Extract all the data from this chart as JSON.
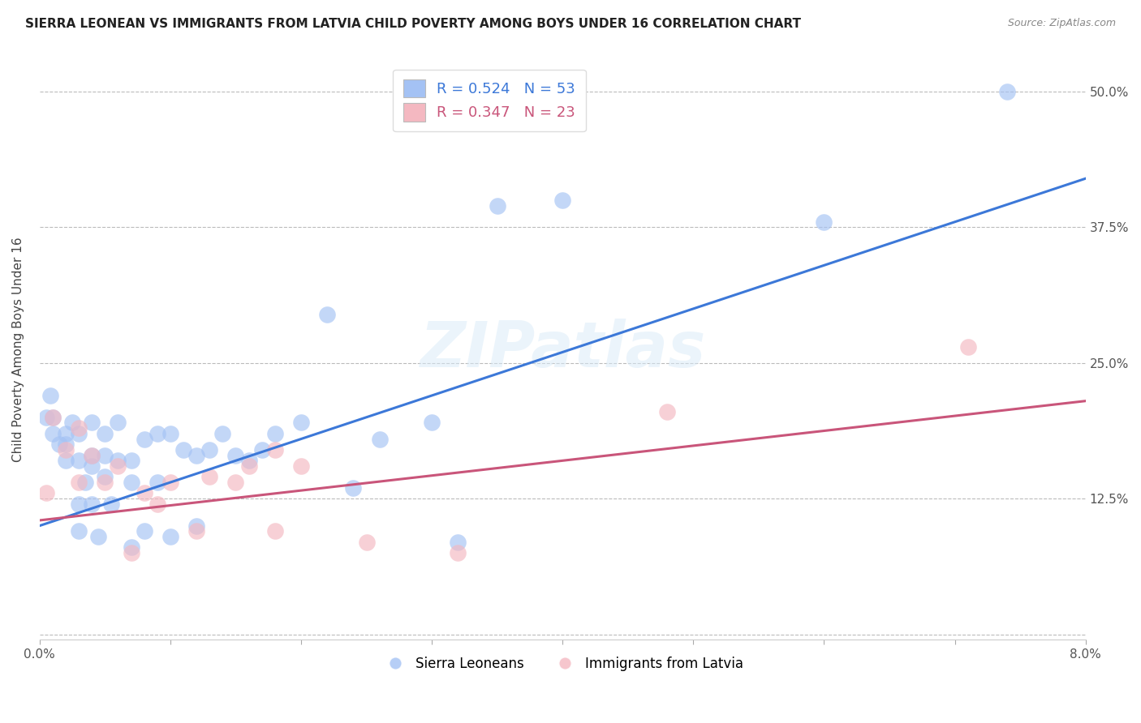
{
  "title": "SIERRA LEONEAN VS IMMIGRANTS FROM LATVIA CHILD POVERTY AMONG BOYS UNDER 16 CORRELATION CHART",
  "source": "Source: ZipAtlas.com",
  "ylabel": "Child Poverty Among Boys Under 16",
  "xlim": [
    0.0,
    0.08
  ],
  "ylim": [
    -0.005,
    0.53
  ],
  "xticks": [
    0.0,
    0.01,
    0.02,
    0.03,
    0.04,
    0.05,
    0.06,
    0.07,
    0.08
  ],
  "xticklabels": [
    "0.0%",
    "",
    "",
    "",
    "",
    "",
    "",
    "",
    "8.0%"
  ],
  "yticks": [
    0.0,
    0.125,
    0.25,
    0.375,
    0.5
  ],
  "yticklabels": [
    "",
    "12.5%",
    "25.0%",
    "37.5%",
    "50.0%"
  ],
  "legend_r1": "R = 0.524   N = 53",
  "legend_r2": "R = 0.347   N = 23",
  "blue_color": "#a4c2f4",
  "pink_color": "#f4b8c1",
  "line_blue": "#3c78d8",
  "line_pink": "#c9557a",
  "watermark": "ZIPatlas",
  "blue_scatter_x": [
    0.0005,
    0.0008,
    0.001,
    0.001,
    0.0015,
    0.002,
    0.002,
    0.002,
    0.0025,
    0.003,
    0.003,
    0.003,
    0.003,
    0.0035,
    0.004,
    0.004,
    0.004,
    0.004,
    0.0045,
    0.005,
    0.005,
    0.005,
    0.0055,
    0.006,
    0.006,
    0.007,
    0.007,
    0.007,
    0.008,
    0.008,
    0.009,
    0.009,
    0.01,
    0.01,
    0.011,
    0.012,
    0.012,
    0.013,
    0.014,
    0.015,
    0.016,
    0.017,
    0.018,
    0.02,
    0.022,
    0.024,
    0.026,
    0.03,
    0.032,
    0.035,
    0.04,
    0.06,
    0.074
  ],
  "blue_scatter_y": [
    0.2,
    0.22,
    0.185,
    0.2,
    0.175,
    0.16,
    0.175,
    0.185,
    0.195,
    0.095,
    0.12,
    0.16,
    0.185,
    0.14,
    0.12,
    0.155,
    0.165,
    0.195,
    0.09,
    0.145,
    0.165,
    0.185,
    0.12,
    0.16,
    0.195,
    0.08,
    0.14,
    0.16,
    0.095,
    0.18,
    0.14,
    0.185,
    0.09,
    0.185,
    0.17,
    0.1,
    0.165,
    0.17,
    0.185,
    0.165,
    0.16,
    0.17,
    0.185,
    0.195,
    0.295,
    0.135,
    0.18,
    0.195,
    0.085,
    0.395,
    0.4,
    0.38,
    0.5
  ],
  "pink_scatter_x": [
    0.0005,
    0.001,
    0.002,
    0.003,
    0.003,
    0.004,
    0.005,
    0.006,
    0.007,
    0.008,
    0.009,
    0.01,
    0.012,
    0.013,
    0.015,
    0.016,
    0.018,
    0.018,
    0.02,
    0.025,
    0.032,
    0.048,
    0.071
  ],
  "pink_scatter_y": [
    0.13,
    0.2,
    0.17,
    0.19,
    0.14,
    0.165,
    0.14,
    0.155,
    0.075,
    0.13,
    0.12,
    0.14,
    0.095,
    0.145,
    0.14,
    0.155,
    0.095,
    0.17,
    0.155,
    0.085,
    0.075,
    0.205,
    0.265
  ],
  "blue_line_x": [
    0.0,
    0.08
  ],
  "blue_line_y": [
    0.1,
    0.42
  ],
  "pink_line_x": [
    0.0,
    0.08
  ],
  "pink_line_y": [
    0.105,
    0.215
  ]
}
